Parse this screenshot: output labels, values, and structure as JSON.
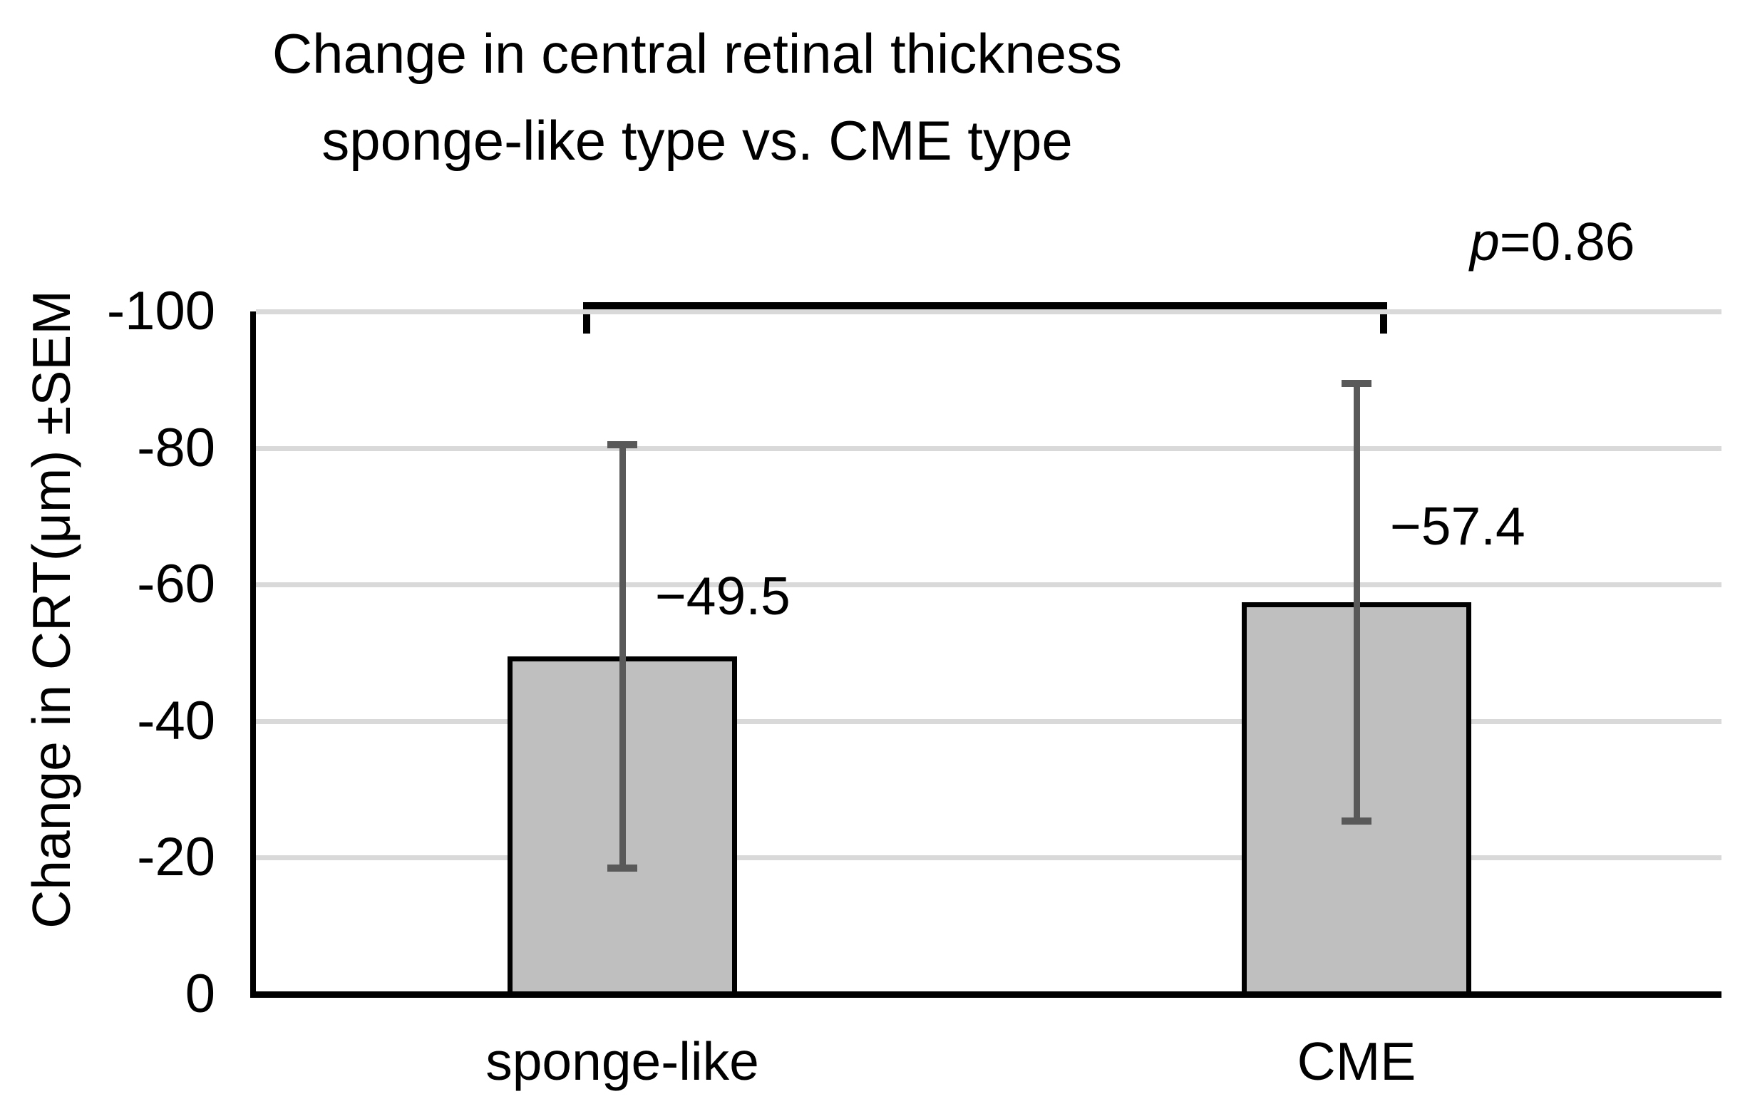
{
  "title": {
    "line1": "Change in central retinal thickness",
    "line2": "sponge-like type vs. CME type"
  },
  "annotations": {
    "p_symbol": "p",
    "p_value_text": "=0.86"
  },
  "chart_data": {
    "type": "bar",
    "title": "Change in central retinal thickness sponge-like type vs. CME type",
    "xlabel": "",
    "ylabel": "Change in CRT(μm) ±SEM",
    "categories": [
      "sponge-like",
      "CME"
    ],
    "values": [
      -49.5,
      -57.4
    ],
    "sem": [
      31.5,
      32.6
    ],
    "value_labels": [
      "−49.5",
      "−57.4"
    ],
    "ylim": [
      0,
      -100
    ],
    "yticks": [
      0,
      -20,
      -40,
      -60,
      -80,
      -100
    ],
    "ytick_labels": [
      "0",
      "-20",
      "-40",
      "-60",
      "-80",
      "-100"
    ],
    "grid": "horizontal",
    "legend": "none",
    "bar_fill_color": "#bfbfbf",
    "bar_border_color": "#000000",
    "error_bar_color": "#595959",
    "gridline_color": "#d9d9d9",
    "significance": {
      "p_text": "p=0.86",
      "between": [
        "sponge-like",
        "CME"
      ]
    }
  }
}
